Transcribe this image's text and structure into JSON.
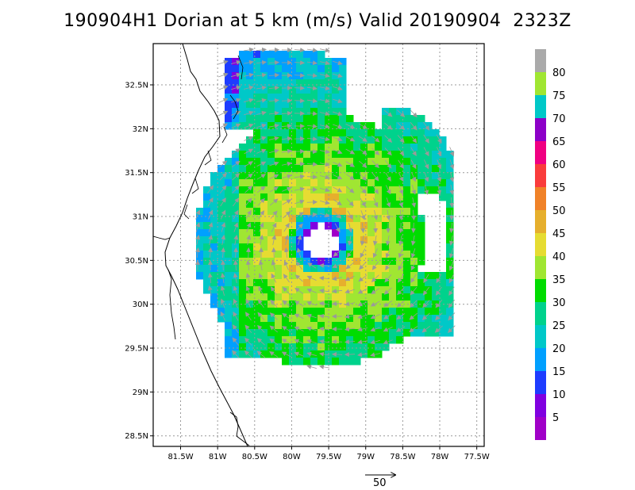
{
  "chart_data": {
    "type": "heatmap",
    "title": "190904H1 Dorian at 5 km (m/s) Valid 20190904  2323Z",
    "x_tick_labels": [
      "81.5W",
      "81W",
      "80.5W",
      "80W",
      "79.5W",
      "79W",
      "78.5W",
      "78W",
      "77.5W"
    ],
    "y_tick_labels": [
      "32.5N",
      "32N",
      "31.5N",
      "31N",
      "30.5N",
      "30N",
      "29.5N",
      "29N",
      "28.5N"
    ],
    "x_ticks": [
      -81.5,
      -81,
      -80.5,
      -80,
      -79.5,
      -79,
      -78.5,
      -78,
      -77.5
    ],
    "y_ticks": [
      32.5,
      32,
      31.5,
      31,
      30.5,
      30,
      29.5,
      29,
      28.5
    ],
    "xlim": [
      -81.87,
      -77.4
    ],
    "ylim": [
      28.38,
      32.97
    ],
    "grid": true,
    "storm_center": {
      "lon": -79.6,
      "lat": 30.72
    },
    "colorbar": {
      "labels": [
        "5",
        "10",
        "15",
        "20",
        "25",
        "30",
        "35",
        "40",
        "45",
        "50",
        "55",
        "60",
        "65",
        "70",
        "75",
        "80"
      ],
      "colors": [
        "#a000c8",
        "#8000e0",
        "#1e3cff",
        "#00a0ff",
        "#00c8c8",
        "#00d28c",
        "#00dc00",
        "#a0e632",
        "#e6dc32",
        "#e6af2d",
        "#f08228",
        "#fa3c3c",
        "#f00082",
        "#8c00c8",
        "#00c8c8",
        "#a0e632",
        "#aaaaaa"
      ]
    },
    "vector_reference": {
      "label": "50",
      "value": 50
    }
  }
}
